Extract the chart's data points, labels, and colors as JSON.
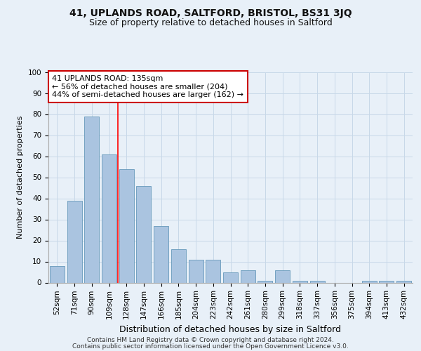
{
  "title": "41, UPLANDS ROAD, SALTFORD, BRISTOL, BS31 3JQ",
  "subtitle": "Size of property relative to detached houses in Saltford",
  "xlabel": "Distribution of detached houses by size in Saltford",
  "ylabel": "Number of detached properties",
  "categories": [
    "52sqm",
    "71sqm",
    "90sqm",
    "109sqm",
    "128sqm",
    "147sqm",
    "166sqm",
    "185sqm",
    "204sqm",
    "223sqm",
    "242sqm",
    "261sqm",
    "280sqm",
    "299sqm",
    "318sqm",
    "337sqm",
    "356sqm",
    "375sqm",
    "394sqm",
    "413sqm",
    "432sqm"
  ],
  "values": [
    8,
    39,
    79,
    61,
    54,
    46,
    27,
    16,
    11,
    11,
    5,
    6,
    1,
    6,
    1,
    1,
    0,
    0,
    1,
    1,
    1
  ],
  "bar_color": "#aac4e0",
  "bar_edge_color": "#6699bb",
  "grid_color": "#c8d8e8",
  "bg_color": "#e8f0f8",
  "red_line_x": 3.5,
  "annotation_text": "41 UPLANDS ROAD: 135sqm\n← 56% of detached houses are smaller (204)\n44% of semi-detached houses are larger (162) →",
  "annotation_box_color": "#ffffff",
  "annotation_box_edge": "#cc0000",
  "footer_line1": "Contains HM Land Registry data © Crown copyright and database right 2024.",
  "footer_line2": "Contains public sector information licensed under the Open Government Licence v3.0.",
  "title_fontsize": 10,
  "subtitle_fontsize": 9,
  "ann_fontsize": 8,
  "ylabel_fontsize": 8,
  "xlabel_fontsize": 9,
  "tick_fontsize": 7.5,
  "footer_fontsize": 6.5,
  "ylim": [
    0,
    100
  ],
  "yticks": [
    0,
    10,
    20,
    30,
    40,
    50,
    60,
    70,
    80,
    90,
    100
  ]
}
